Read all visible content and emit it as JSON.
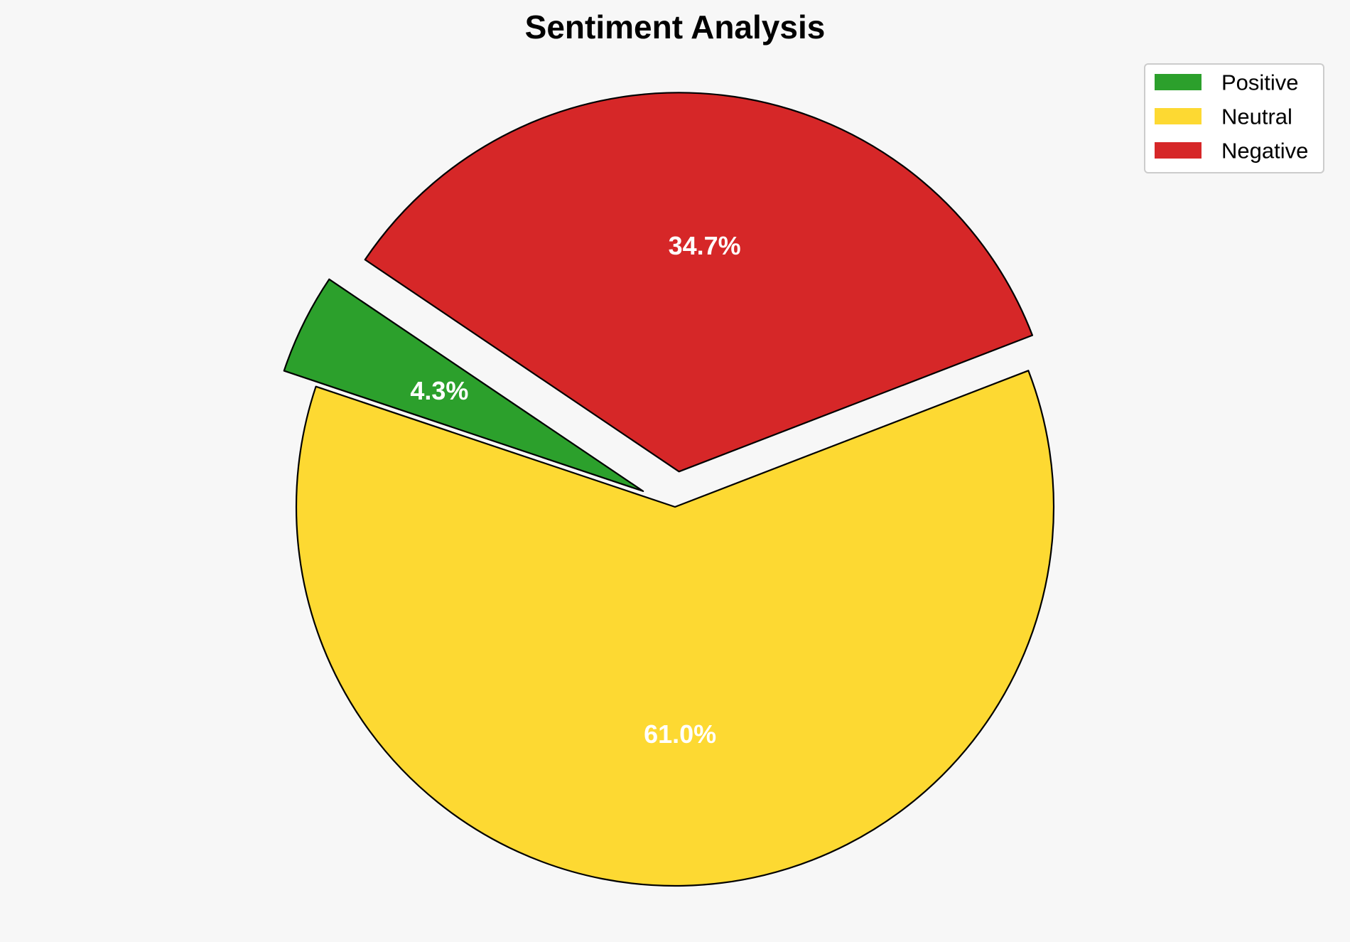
{
  "chart_data": {
    "type": "pie",
    "title": "Sentiment Analysis",
    "categories": [
      "Positive",
      "Neutral",
      "Negative"
    ],
    "values": [
      4.3,
      61.0,
      34.7
    ],
    "labels": [
      "4.3%",
      "61.0%",
      "34.7%"
    ],
    "colors": [
      "#2ca02c",
      "#fdd932",
      "#d62728"
    ],
    "exploded": [
      true,
      false,
      true
    ],
    "legend_placement": "top-right"
  }
}
